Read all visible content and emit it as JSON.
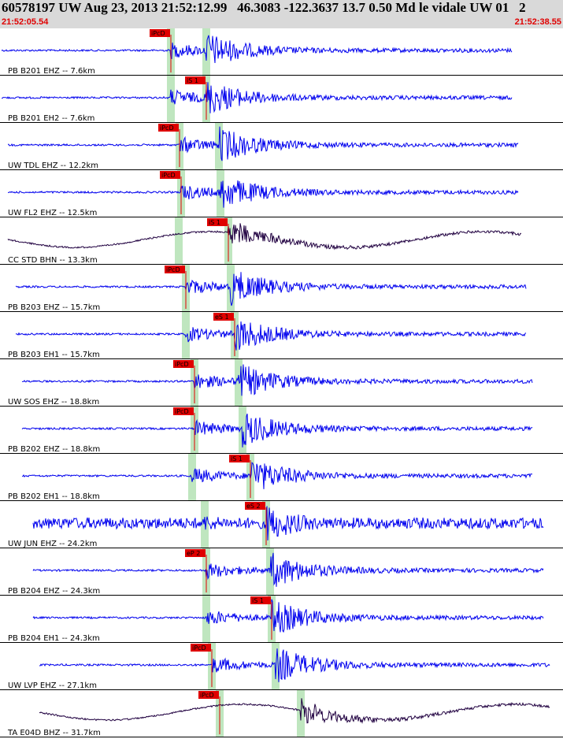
{
  "header": {
    "title": "60578197 UW Aug 23, 2013 21:52:12.99   46.3083 -122.3637 13.7 0.50 Md le vidale UW 01   2",
    "time_start": "21:52:05.54",
    "time_end": "21:52:38.55"
  },
  "colors": {
    "trace": "#0000ee",
    "trace_dark": "#200040",
    "pick": "#e00000",
    "window": "#bfe6bf",
    "header_bg": "#d9d9d9"
  },
  "traces": [
    {
      "label": "PB B201 EHZ --  7.6km",
      "pick": "iPcD",
      "style": "normal"
    },
    {
      "label": "PB B201 EH2 --  7.6km",
      "pick": "iS 1",
      "style": "normal"
    },
    {
      "label": "UW TDL EHZ -- 12.2km",
      "pick": "iPcD",
      "style": "normal"
    },
    {
      "label": "UW FL2 EHZ -- 12.5km",
      "pick": "iPcD",
      "style": "normal"
    },
    {
      "label": "CC STD BHN -- 13.3km",
      "pick": "iS 1",
      "style": "dark"
    },
    {
      "label": "PB B203 EHZ -- 15.7km",
      "pick": "iPcD",
      "style": "normal"
    },
    {
      "label": "PB B203 EH1 -- 15.7km",
      "pick": "eS 1",
      "style": "normal"
    },
    {
      "label": "UW SOS EHZ -- 18.8km",
      "pick": "iPcD",
      "style": "normal"
    },
    {
      "label": "PB B202 EHZ -- 18.8km",
      "pick": "iPcD",
      "style": "normal"
    },
    {
      "label": "PB B202 EH1 -- 18.8km",
      "pick": "iS 1",
      "style": "normal"
    },
    {
      "label": "UW JUN EHZ -- 24.2km",
      "pick": "eS 2",
      "style": "noisy"
    },
    {
      "label": "PB B204 EHZ -- 24.3km",
      "pick": "eP 2",
      "style": "normal"
    },
    {
      "label": "PB B204 EH1 -- 24.3km",
      "pick": "iS 1",
      "style": "normal"
    },
    {
      "label": "UW LVP EHZ -- 27.1km",
      "pick": "iPcD",
      "style": "normal"
    },
    {
      "label": "TA E04D BHZ -- 31.7km",
      "pick": "iPcD",
      "style": "dark"
    }
  ]
}
